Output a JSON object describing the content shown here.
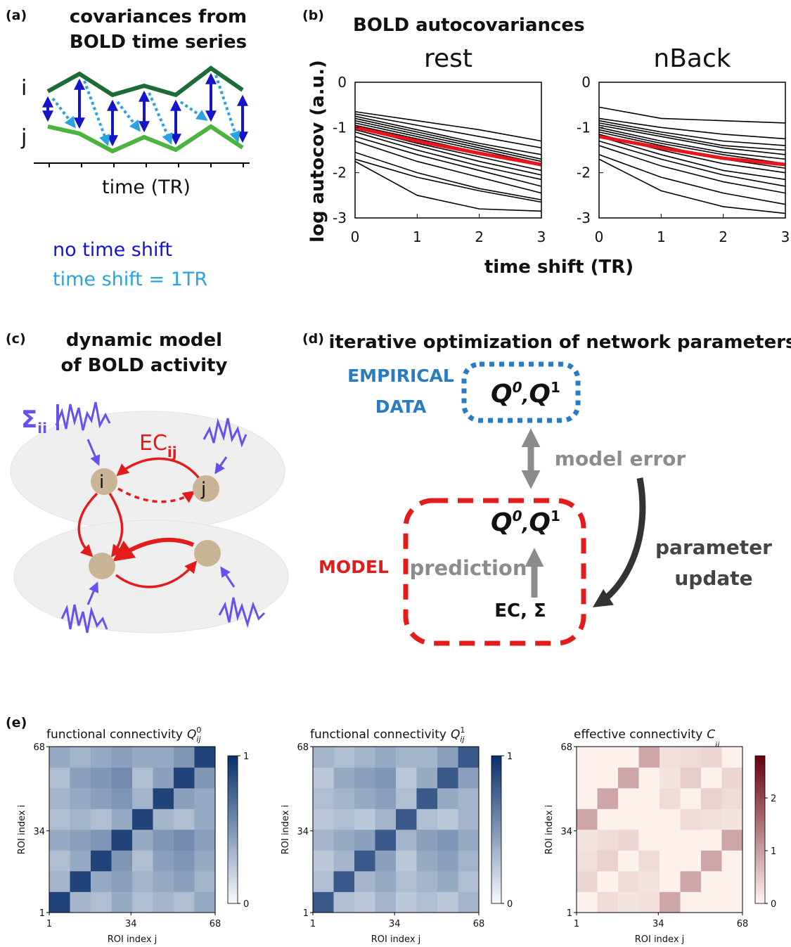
{
  "panels": {
    "a": {
      "label": "(a)",
      "title": [
        "covariances from",
        "BOLD time series"
      ],
      "node_i": "i",
      "node_j": "j",
      "xlabel": "time (TR)",
      "legend": [
        "no time shift",
        "time shift = 1TR"
      ]
    },
    "b": {
      "label": "(b)",
      "title": "BOLD autocovariances",
      "ylabel": "log autocov (a.u.)",
      "xlabel": "time shift (TR)"
    },
    "c": {
      "label": "(c)",
      "title": [
        "dynamic model",
        "of BOLD activity"
      ],
      "sigma": "Σ",
      "sigma_sub": "ii",
      "ec": "EC",
      "ec_sub": "ij",
      "node_i": "i",
      "node_j": "j"
    },
    "d": {
      "label": "(d)",
      "title": "iterative optimization of network parameters",
      "empirical": [
        "EMPIRICAL",
        "DATA"
      ],
      "model": "MODEL",
      "q": "Q",
      "q_sup0": "0",
      "q_sep": ",",
      "q_sup1": "1",
      "model_error": "model error",
      "prediction": "prediction",
      "update": [
        "parameter",
        "update"
      ],
      "params": "EC, Σ"
    },
    "e": {
      "label": "(e)"
    }
  },
  "chart_data": [
    {
      "type": "line",
      "title": "rest",
      "x": [
        0,
        1,
        2,
        3
      ],
      "xlim": [
        0,
        3
      ],
      "xticks": [
        0,
        1,
        2,
        3
      ],
      "ylim": [
        -3,
        0
      ],
      "yticks": [
        0,
        -1,
        -2,
        -3
      ],
      "series": [
        {
          "color": "#000000",
          "values": [
            -0.65,
            -0.85,
            -1.05,
            -1.3
          ]
        },
        {
          "color": "#000000",
          "values": [
            -0.7,
            -0.95,
            -1.2,
            -1.45
          ]
        },
        {
          "color": "#000000",
          "values": [
            -0.75,
            -1.05,
            -1.35,
            -1.6
          ]
        },
        {
          "color": "#000000",
          "values": [
            -0.8,
            -1.1,
            -1.4,
            -1.7
          ]
        },
        {
          "color": "#000000",
          "values": [
            -0.85,
            -1.15,
            -1.45,
            -1.75
          ]
        },
        {
          "color": "#000000",
          "values": [
            -0.9,
            -1.2,
            -1.5,
            -1.8
          ]
        },
        {
          "color": "#000000",
          "values": [
            -0.95,
            -1.25,
            -1.55,
            -1.85
          ]
        },
        {
          "color": "#000000",
          "values": [
            -1.0,
            -1.35,
            -1.65,
            -1.95
          ]
        },
        {
          "color": "#000000",
          "values": [
            -1.05,
            -1.4,
            -1.75,
            -2.05
          ]
        },
        {
          "color": "#000000",
          "values": [
            -1.1,
            -1.5,
            -1.85,
            -2.15
          ]
        },
        {
          "color": "#000000",
          "values": [
            -1.2,
            -1.6,
            -1.95,
            -2.3
          ]
        },
        {
          "color": "#000000",
          "values": [
            -1.3,
            -1.75,
            -2.1,
            -2.45
          ]
        },
        {
          "color": "#000000",
          "values": [
            -1.55,
            -2.0,
            -2.35,
            -2.6
          ]
        },
        {
          "color": "#000000",
          "values": [
            -1.7,
            -2.1,
            -2.4,
            -2.65
          ]
        },
        {
          "color": "#000000",
          "values": [
            -1.75,
            -2.5,
            -2.8,
            -2.85
          ]
        },
        {
          "color": "#e8161b",
          "values": [
            -1.0,
            -1.3,
            -1.57,
            -1.82
          ]
        }
      ]
    },
    {
      "type": "line",
      "title": "nBack",
      "x": [
        0,
        1,
        2,
        3
      ],
      "xlim": [
        0,
        3
      ],
      "xticks": [
        0,
        1,
        2,
        3
      ],
      "ylim": [
        -3,
        0
      ],
      "yticks": [
        0,
        -1,
        -2,
        -3
      ],
      "series": [
        {
          "color": "#000000",
          "values": [
            -0.55,
            -0.8,
            -0.85,
            -0.9
          ]
        },
        {
          "color": "#000000",
          "values": [
            -0.8,
            -1.0,
            -1.15,
            -1.25
          ]
        },
        {
          "color": "#000000",
          "values": [
            -0.85,
            -1.1,
            -1.3,
            -1.4
          ]
        },
        {
          "color": "#000000",
          "values": [
            -0.9,
            -1.15,
            -1.4,
            -1.5
          ]
        },
        {
          "color": "#000000",
          "values": [
            -0.95,
            -1.2,
            -1.45,
            -1.6
          ]
        },
        {
          "color": "#000000",
          "values": [
            -1.0,
            -1.3,
            -1.55,
            -1.7
          ]
        },
        {
          "color": "#000000",
          "values": [
            -1.05,
            -1.35,
            -1.6,
            -1.8
          ]
        },
        {
          "color": "#000000",
          "values": [
            -1.1,
            -1.4,
            -1.7,
            -1.9
          ]
        },
        {
          "color": "#000000",
          "values": [
            -1.15,
            -1.5,
            -1.8,
            -2.0
          ]
        },
        {
          "color": "#000000",
          "values": [
            -1.2,
            -1.6,
            -1.95,
            -2.15
          ]
        },
        {
          "color": "#000000",
          "values": [
            -1.3,
            -1.7,
            -2.05,
            -2.3
          ]
        },
        {
          "color": "#000000",
          "values": [
            -1.4,
            -1.85,
            -2.2,
            -2.45
          ]
        },
        {
          "color": "#000000",
          "values": [
            -1.6,
            -2.1,
            -2.45,
            -2.7
          ]
        },
        {
          "color": "#000000",
          "values": [
            -1.7,
            -2.4,
            -2.75,
            -2.9
          ]
        },
        {
          "color": "#e8161b",
          "values": [
            -1.2,
            -1.45,
            -1.68,
            -1.82
          ]
        }
      ]
    },
    {
      "type": "heatmap",
      "title": "functional connectivity",
      "symbol": "Q",
      "sup": "0",
      "sub": "ij",
      "xlabel": "ROI index j",
      "ylabel": "ROI index i",
      "xlim": [
        1,
        68
      ],
      "ylim": [
        1,
        68
      ],
      "xticks": [
        1,
        34,
        68
      ],
      "yticks": [
        1,
        34,
        68
      ],
      "colormap": "Blues",
      "zlim": [
        0,
        1
      ],
      "zticks": [
        0,
        1
      ],
      "z": [
        [
          0.9,
          0.35,
          0.3,
          0.4,
          0.3,
          0.35,
          0.3,
          0.4
        ],
        [
          0.35,
          0.9,
          0.4,
          0.45,
          0.35,
          0.4,
          0.45,
          0.35
        ],
        [
          0.3,
          0.4,
          0.9,
          0.5,
          0.3,
          0.45,
          0.5,
          0.4
        ],
        [
          0.4,
          0.45,
          0.5,
          0.9,
          0.4,
          0.5,
          0.55,
          0.45
        ],
        [
          0.3,
          0.35,
          0.3,
          0.4,
          0.9,
          0.35,
          0.3,
          0.4
        ],
        [
          0.35,
          0.4,
          0.45,
          0.5,
          0.35,
          0.9,
          0.45,
          0.4
        ],
        [
          0.3,
          0.45,
          0.5,
          0.55,
          0.3,
          0.45,
          0.9,
          0.5
        ],
        [
          0.4,
          0.35,
          0.4,
          0.45,
          0.4,
          0.4,
          0.5,
          0.9
        ]
      ]
    },
    {
      "type": "heatmap",
      "title": "functional connectivity",
      "symbol": "Q",
      "sup": "1",
      "sub": "ij",
      "xlabel": "ROI index j",
      "ylabel": "ROI index i",
      "xlim": [
        1,
        68
      ],
      "ylim": [
        1,
        68
      ],
      "xticks": [
        1,
        34,
        68
      ],
      "yticks": [
        1,
        34,
        68
      ],
      "colormap": "Blues",
      "zlim": [
        0,
        1
      ],
      "zticks": [
        0,
        1
      ],
      "z": [
        [
          0.8,
          0.3,
          0.25,
          0.35,
          0.25,
          0.3,
          0.25,
          0.35
        ],
        [
          0.3,
          0.8,
          0.35,
          0.4,
          0.3,
          0.35,
          0.4,
          0.3
        ],
        [
          0.25,
          0.35,
          0.8,
          0.45,
          0.25,
          0.4,
          0.45,
          0.35
        ],
        [
          0.35,
          0.4,
          0.45,
          0.8,
          0.35,
          0.45,
          0.5,
          0.4
        ],
        [
          0.25,
          0.3,
          0.25,
          0.35,
          0.8,
          0.3,
          0.25,
          0.35
        ],
        [
          0.3,
          0.35,
          0.4,
          0.45,
          0.3,
          0.8,
          0.4,
          0.35
        ],
        [
          0.25,
          0.4,
          0.45,
          0.5,
          0.25,
          0.4,
          0.8,
          0.45
        ],
        [
          0.35,
          0.3,
          0.35,
          0.4,
          0.35,
          0.35,
          0.45,
          0.8
        ]
      ]
    },
    {
      "type": "heatmap",
      "title": "effective connectivity",
      "symbol": "C",
      "sub": "ij",
      "xlabel": "ROI index j",
      "ylabel": "ROI index i",
      "xlim": [
        1,
        68
      ],
      "ylim": [
        1,
        68
      ],
      "xticks": [
        1,
        34,
        68
      ],
      "yticks": [
        1,
        34,
        68
      ],
      "colormap": "Reds",
      "zlim": [
        0,
        2.8
      ],
      "zticks": [
        0,
        1,
        2
      ],
      "z": [
        [
          0.05,
          0.3,
          0.2,
          0.25,
          0.9,
          0.05,
          0.05,
          0.05
        ],
        [
          0.35,
          0.05,
          0.3,
          0.2,
          0.05,
          0.9,
          0.05,
          0.05
        ],
        [
          0.25,
          0.4,
          0.05,
          0.3,
          0.05,
          0.05,
          0.9,
          0.05
        ],
        [
          0.2,
          0.3,
          0.35,
          0.05,
          0.05,
          0.05,
          0.05,
          0.9
        ],
        [
          0.9,
          0.05,
          0.05,
          0.05,
          0.05,
          0.3,
          0.25,
          0.2
        ],
        [
          0.05,
          0.9,
          0.05,
          0.05,
          0.3,
          0.05,
          0.4,
          0.3
        ],
        [
          0.05,
          0.05,
          0.9,
          0.05,
          0.2,
          0.45,
          0.05,
          0.35
        ],
        [
          0.05,
          0.05,
          0.05,
          0.9,
          0.25,
          0.3,
          0.35,
          0.05
        ]
      ]
    }
  ]
}
